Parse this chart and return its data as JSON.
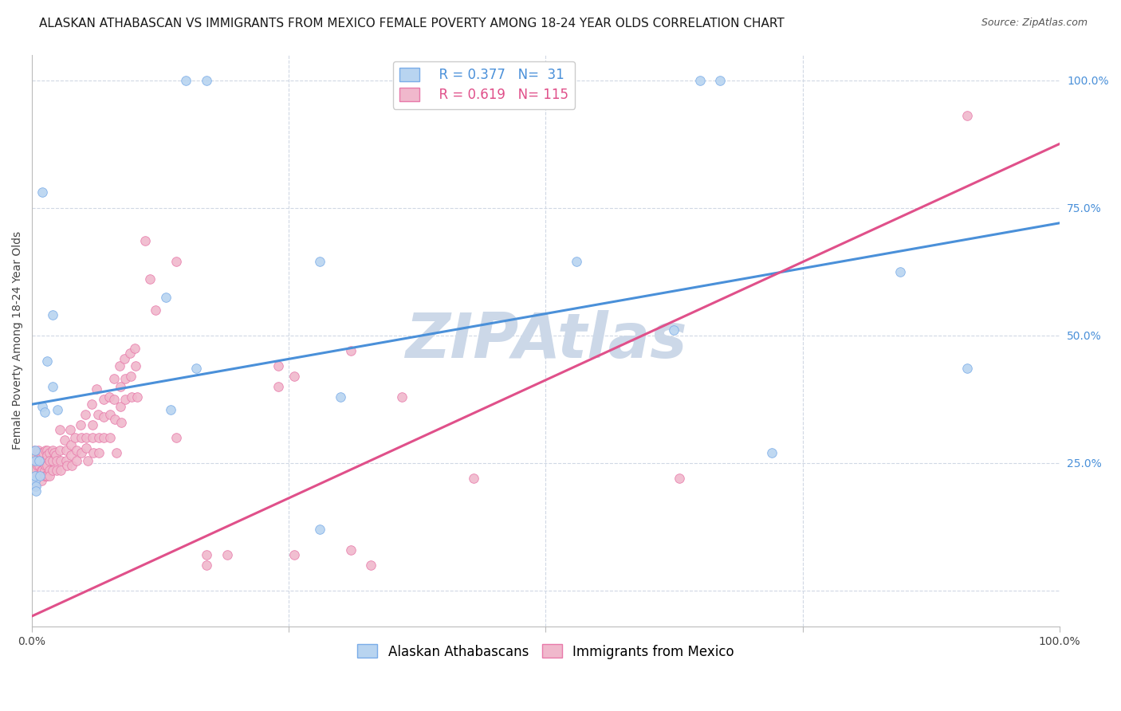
{
  "title": "ALASKAN ATHABASCAN VS IMMIGRANTS FROM MEXICO FEMALE POVERTY AMONG 18-24 YEAR OLDS CORRELATION CHART",
  "source": "Source: ZipAtlas.com",
  "ylabel": "Female Poverty Among 18-24 Year Olds",
  "xlim": [
    0.0,
    1.0
  ],
  "ylim": [
    -0.07,
    1.05
  ],
  "ytick_positions": [
    0.0,
    0.25,
    0.5,
    0.75,
    1.0
  ],
  "yticklabels_right": [
    "",
    "25.0%",
    "50.0%",
    "75.0%",
    "100.0%"
  ],
  "watermark": "ZIPAtlas",
  "legend_entries": [
    {
      "label": "Alaskan Athabascans",
      "R": "0.377",
      "N": " 31",
      "patch_color": "#b8d4f0",
      "patch_edge": "#7aace8",
      "line_color": "#4a90d9"
    },
    {
      "label": "Immigrants from Mexico",
      "R": "0.619",
      "N": "115",
      "patch_color": "#f0b8cc",
      "patch_edge": "#e87aaa",
      "line_color": "#e0508a"
    }
  ],
  "blue_scatter": [
    [
      0.003,
      0.275
    ],
    [
      0.003,
      0.215
    ],
    [
      0.003,
      0.225
    ],
    [
      0.003,
      0.255
    ],
    [
      0.004,
      0.205
    ],
    [
      0.004,
      0.195
    ],
    [
      0.007,
      0.255
    ],
    [
      0.008,
      0.225
    ],
    [
      0.01,
      0.78
    ],
    [
      0.01,
      0.36
    ],
    [
      0.012,
      0.35
    ],
    [
      0.015,
      0.45
    ],
    [
      0.02,
      0.54
    ],
    [
      0.02,
      0.4
    ],
    [
      0.025,
      0.355
    ],
    [
      0.13,
      0.575
    ],
    [
      0.135,
      0.355
    ],
    [
      0.16,
      0.435
    ],
    [
      0.28,
      0.645
    ],
    [
      0.28,
      0.12
    ],
    [
      0.3,
      0.38
    ],
    [
      0.15,
      1.0
    ],
    [
      0.17,
      1.0
    ],
    [
      0.42,
      1.0
    ],
    [
      0.65,
      1.0
    ],
    [
      0.67,
      1.0
    ],
    [
      0.53,
      0.645
    ],
    [
      0.625,
      0.51
    ],
    [
      0.72,
      0.27
    ],
    [
      0.845,
      0.625
    ],
    [
      0.91,
      0.435
    ]
  ],
  "pink_scatter": [
    [
      0.002,
      0.275
    ],
    [
      0.002,
      0.265
    ],
    [
      0.002,
      0.255
    ],
    [
      0.002,
      0.245
    ],
    [
      0.003,
      0.235
    ],
    [
      0.003,
      0.225
    ],
    [
      0.003,
      0.215
    ],
    [
      0.003,
      0.205
    ],
    [
      0.004,
      0.265
    ],
    [
      0.005,
      0.255
    ],
    [
      0.005,
      0.245
    ],
    [
      0.006,
      0.275
    ],
    [
      0.007,
      0.265
    ],
    [
      0.007,
      0.255
    ],
    [
      0.007,
      0.245
    ],
    [
      0.007,
      0.225
    ],
    [
      0.008,
      0.27
    ],
    [
      0.009,
      0.255
    ],
    [
      0.009,
      0.235
    ],
    [
      0.009,
      0.215
    ],
    [
      0.01,
      0.265
    ],
    [
      0.01,
      0.255
    ],
    [
      0.01,
      0.235
    ],
    [
      0.011,
      0.27
    ],
    [
      0.012,
      0.255
    ],
    [
      0.012,
      0.235
    ],
    [
      0.012,
      0.225
    ],
    [
      0.013,
      0.275
    ],
    [
      0.013,
      0.255
    ],
    [
      0.013,
      0.245
    ],
    [
      0.013,
      0.225
    ],
    [
      0.015,
      0.275
    ],
    [
      0.015,
      0.265
    ],
    [
      0.015,
      0.245
    ],
    [
      0.015,
      0.225
    ],
    [
      0.017,
      0.27
    ],
    [
      0.017,
      0.255
    ],
    [
      0.017,
      0.235
    ],
    [
      0.017,
      0.225
    ],
    [
      0.02,
      0.275
    ],
    [
      0.02,
      0.255
    ],
    [
      0.02,
      0.235
    ],
    [
      0.022,
      0.27
    ],
    [
      0.023,
      0.265
    ],
    [
      0.024,
      0.255
    ],
    [
      0.024,
      0.235
    ],
    [
      0.027,
      0.315
    ],
    [
      0.027,
      0.275
    ],
    [
      0.028,
      0.255
    ],
    [
      0.028,
      0.235
    ],
    [
      0.032,
      0.295
    ],
    [
      0.033,
      0.275
    ],
    [
      0.033,
      0.255
    ],
    [
      0.034,
      0.245
    ],
    [
      0.037,
      0.315
    ],
    [
      0.038,
      0.285
    ],
    [
      0.038,
      0.265
    ],
    [
      0.039,
      0.245
    ],
    [
      0.042,
      0.3
    ],
    [
      0.043,
      0.275
    ],
    [
      0.043,
      0.255
    ],
    [
      0.047,
      0.325
    ],
    [
      0.048,
      0.3
    ],
    [
      0.048,
      0.27
    ],
    [
      0.052,
      0.345
    ],
    [
      0.053,
      0.3
    ],
    [
      0.053,
      0.28
    ],
    [
      0.054,
      0.255
    ],
    [
      0.058,
      0.365
    ],
    [
      0.059,
      0.325
    ],
    [
      0.059,
      0.3
    ],
    [
      0.06,
      0.27
    ],
    [
      0.063,
      0.395
    ],
    [
      0.064,
      0.345
    ],
    [
      0.065,
      0.3
    ],
    [
      0.065,
      0.27
    ],
    [
      0.07,
      0.375
    ],
    [
      0.07,
      0.34
    ],
    [
      0.07,
      0.3
    ],
    [
      0.075,
      0.38
    ],
    [
      0.076,
      0.345
    ],
    [
      0.076,
      0.3
    ],
    [
      0.08,
      0.415
    ],
    [
      0.08,
      0.375
    ],
    [
      0.081,
      0.335
    ],
    [
      0.082,
      0.27
    ],
    [
      0.085,
      0.44
    ],
    [
      0.086,
      0.4
    ],
    [
      0.086,
      0.36
    ],
    [
      0.087,
      0.33
    ],
    [
      0.09,
      0.455
    ],
    [
      0.091,
      0.415
    ],
    [
      0.091,
      0.375
    ],
    [
      0.095,
      0.465
    ],
    [
      0.096,
      0.42
    ],
    [
      0.097,
      0.38
    ],
    [
      0.1,
      0.475
    ],
    [
      0.101,
      0.44
    ],
    [
      0.102,
      0.38
    ],
    [
      0.11,
      0.685
    ],
    [
      0.115,
      0.61
    ],
    [
      0.12,
      0.55
    ],
    [
      0.14,
      0.645
    ],
    [
      0.14,
      0.3
    ],
    [
      0.17,
      0.07
    ],
    [
      0.17,
      0.05
    ],
    [
      0.19,
      0.07
    ],
    [
      0.24,
      0.44
    ],
    [
      0.24,
      0.4
    ],
    [
      0.255,
      0.42
    ],
    [
      0.255,
      0.07
    ],
    [
      0.31,
      0.47
    ],
    [
      0.31,
      0.08
    ],
    [
      0.33,
      0.05
    ],
    [
      0.36,
      0.38
    ],
    [
      0.43,
      0.22
    ],
    [
      0.63,
      0.22
    ],
    [
      0.91,
      0.93
    ]
  ],
  "blue_line_x": [
    0.0,
    1.0
  ],
  "blue_line_y": [
    0.365,
    0.72
  ],
  "pink_line_x": [
    0.0,
    1.0
  ],
  "pink_line_y": [
    -0.05,
    0.875
  ],
  "blue_line_color": "#4a90d9",
  "pink_line_color": "#e0508a",
  "blue_scatter_color": "#b8d4f0",
  "pink_scatter_color": "#f0b8cc",
  "blue_scatter_edge": "#7aace8",
  "pink_scatter_edge": "#e87aaa",
  "scatter_size": 70,
  "line_width": 2.2,
  "title_fontsize": 11,
  "axis_label_fontsize": 10,
  "tick_fontsize": 10,
  "legend_fontsize": 12,
  "watermark_color": "#ccd8e8",
  "watermark_fontsize": 56,
  "background_color": "#ffffff",
  "grid_color": "#d0d8e4",
  "right_label_color": "#4a90d9"
}
